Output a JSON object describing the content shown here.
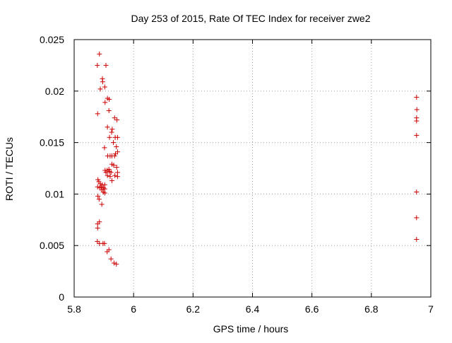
{
  "chart_data": {
    "type": "scatter",
    "title": "Day 253 of 2015, Rate Of TEC Index for receiver zwe2",
    "xlabel": "GPS time / hours",
    "ylabel": "ROTI / TECUs",
    "xlim": [
      5.8,
      7.0
    ],
    "ylim": [
      0.0,
      0.025
    ],
    "x_ticks": [
      5.8,
      6.0,
      6.2,
      6.4,
      6.6,
      6.8,
      7.0
    ],
    "x_tick_labels": [
      "5.8",
      "6",
      "6.2",
      "6.4",
      "6.6",
      "6.8",
      "7"
    ],
    "y_ticks": [
      0.0,
      0.005,
      0.01,
      0.015,
      0.02,
      0.025
    ],
    "y_tick_labels": [
      "0",
      "0.005",
      "0.01",
      "0.015",
      "0.02",
      "0.025"
    ],
    "grid": true,
    "legend": "none",
    "marker": "+",
    "colors": {
      "points": "#cc0000",
      "grid": "#a0a0a0",
      "axes": "#000000"
    },
    "series": [
      {
        "points": [
          [
            5.885,
            0.0236
          ],
          [
            5.878,
            0.0225
          ],
          [
            5.907,
            0.0225
          ],
          [
            5.895,
            0.0212
          ],
          [
            5.896,
            0.0209
          ],
          [
            5.903,
            0.0204
          ],
          [
            5.888,
            0.0202
          ],
          [
            5.912,
            0.0193
          ],
          [
            5.918,
            0.0192
          ],
          [
            5.904,
            0.0189
          ],
          [
            5.917,
            0.0181
          ],
          [
            5.879,
            0.0178
          ],
          [
            5.936,
            0.0174
          ],
          [
            5.944,
            0.0172
          ],
          [
            5.912,
            0.0165
          ],
          [
            5.928,
            0.0163
          ],
          [
            5.926,
            0.016
          ],
          [
            5.919,
            0.0155
          ],
          [
            5.938,
            0.0155
          ],
          [
            5.946,
            0.0155
          ],
          [
            5.932,
            0.015
          ],
          [
            5.902,
            0.0145
          ],
          [
            5.942,
            0.0146
          ],
          [
            5.946,
            0.0141
          ],
          [
            5.939,
            0.0139
          ],
          [
            5.913,
            0.0137
          ],
          [
            5.921,
            0.0137
          ],
          [
            5.927,
            0.0137
          ],
          [
            5.936,
            0.0137
          ],
          [
            5.927,
            0.0129
          ],
          [
            5.933,
            0.0128
          ],
          [
            5.943,
            0.0126
          ],
          [
            5.904,
            0.0123
          ],
          [
            5.911,
            0.0123
          ],
          [
            5.907,
            0.0121
          ],
          [
            5.917,
            0.0124
          ],
          [
            5.919,
            0.0122
          ],
          [
            5.924,
            0.0121
          ],
          [
            5.946,
            0.0121
          ],
          [
            5.912,
            0.0118
          ],
          [
            5.921,
            0.0117
          ],
          [
            5.937,
            0.0118
          ],
          [
            5.946,
            0.0117
          ],
          [
            5.927,
            0.0113
          ],
          [
            5.88,
            0.0114
          ],
          [
            5.883,
            0.0112
          ],
          [
            5.888,
            0.011
          ],
          [
            5.895,
            0.0109
          ],
          [
            5.903,
            0.0109
          ],
          [
            5.879,
            0.0107
          ],
          [
            5.891,
            0.0107
          ],
          [
            5.899,
            0.0106
          ],
          [
            5.886,
            0.0106
          ],
          [
            5.893,
            0.0104
          ],
          [
            5.903,
            0.0105
          ],
          [
            5.898,
            0.0102
          ],
          [
            5.903,
            0.0101
          ],
          [
            5.88,
            0.0098
          ],
          [
            5.884,
            0.0095
          ],
          [
            5.893,
            0.009
          ],
          [
            5.885,
            0.0073
          ],
          [
            5.879,
            0.0071
          ],
          [
            5.879,
            0.0067
          ],
          [
            5.878,
            0.0054
          ],
          [
            5.885,
            0.0052
          ],
          [
            5.897,
            0.0052
          ],
          [
            5.902,
            0.0052
          ],
          [
            5.917,
            0.0046
          ],
          [
            5.911,
            0.0044
          ],
          [
            5.924,
            0.0037
          ],
          [
            5.934,
            0.0033
          ],
          [
            5.942,
            0.0032
          ],
          [
            6.952,
            0.0194
          ],
          [
            6.953,
            0.0182
          ],
          [
            6.952,
            0.0174
          ],
          [
            6.952,
            0.0171
          ],
          [
            6.952,
            0.0157
          ],
          [
            6.952,
            0.0102
          ],
          [
            6.952,
            0.0077
          ],
          [
            6.952,
            0.0056
          ]
        ]
      }
    ]
  }
}
